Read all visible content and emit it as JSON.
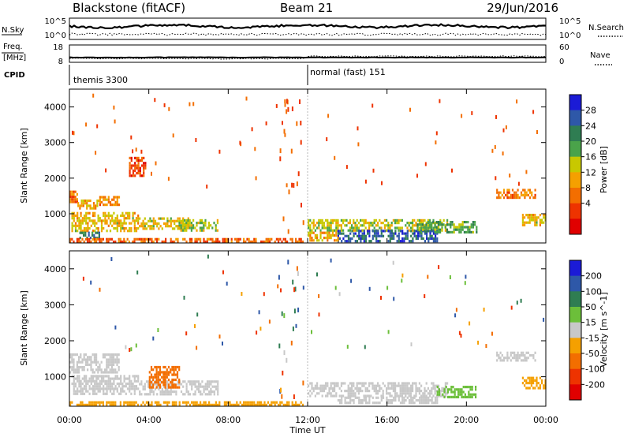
{
  "header": {
    "title": "Blackstone (fitACF)",
    "beam": "Beam 21",
    "date": "29/Jun/2016"
  },
  "noise_panel": {
    "left_label": "N.Sky",
    "right_label": "N.Search",
    "tick_top": "10^5",
    "tick_bottom": "10^0"
  },
  "freq_panel": {
    "left_label_1": "Freq.",
    "left_label_2": "[MHz]",
    "left_ticks": [
      "18",
      "8"
    ],
    "right_label": "Nave",
    "right_ticks": [
      "60",
      "0"
    ]
  },
  "cpid_panel": {
    "label": "CPID",
    "segments": [
      {
        "name": "themis 3300",
        "start_hour": 0
      },
      {
        "name": "normal (fast) 151",
        "start_hour": 12
      }
    ]
  },
  "x_axis": {
    "label": "Time UT",
    "ticks": [
      "00:00",
      "04:00",
      "08:00",
      "12:00",
      "16:00",
      "20:00",
      "00:00"
    ],
    "range_hours": [
      0,
      24
    ]
  },
  "colors": {
    "power": [
      "#1b1bd6",
      "#2e58a8",
      "#2f7d52",
      "#4aa34a",
      "#c8c800",
      "#f5a000",
      "#f36e00",
      "#ee3300",
      "#e00000"
    ],
    "velocity": [
      "#1b1bd6",
      "#2e58a8",
      "#2f7d52",
      "#6cbf3a",
      "#c8c8c8",
      "#f5a000",
      "#f36e00",
      "#ee3300",
      "#e00000"
    ]
  },
  "chart_data": [
    {
      "type": "heatmap",
      "quantity": "power",
      "ylabel": "Slant Range [km]",
      "xlabel": "Time UT",
      "ylim": [
        180,
        4500
      ],
      "yticks": [
        "4000",
        "3000",
        "2000",
        "1000"
      ],
      "colorbar": {
        "label": "Power [dB]",
        "ticks": [
          "28",
          "24",
          "20",
          "16",
          "12",
          "8",
          "4"
        ],
        "range": [
          0,
          32
        ]
      },
      "scatter_regions": [
        {
          "t0": 0.0,
          "t1": 0.4,
          "r0": 1350,
          "r1": 1650,
          "v": 10
        },
        {
          "t0": 0.4,
          "t1": 1.5,
          "r0": 1150,
          "r1": 1400,
          "v": 12
        },
        {
          "t0": 1.5,
          "t1": 2.5,
          "r0": 1250,
          "r1": 1500,
          "v": 11
        },
        {
          "t0": 0.1,
          "t1": 3.5,
          "r0": 550,
          "r1": 1050,
          "v": 14
        },
        {
          "t0": 0.5,
          "t1": 1.5,
          "r0": 300,
          "r1": 500,
          "v": 24
        },
        {
          "t0": 3.5,
          "t1": 6.0,
          "r0": 550,
          "r1": 900,
          "v": 15
        },
        {
          "t0": 5.5,
          "t1": 7.5,
          "r0": 500,
          "r1": 850,
          "v": 17
        },
        {
          "t0": 3.0,
          "t1": 3.8,
          "r0": 2100,
          "r1": 2600,
          "v": 6
        },
        {
          "t0": 0.0,
          "t1": 11.8,
          "r0": 200,
          "r1": 320,
          "v": 8
        },
        {
          "t0": 12.0,
          "t1": 19.0,
          "r0": 550,
          "r1": 850,
          "v": 16
        },
        {
          "t0": 13.5,
          "t1": 18.5,
          "r0": 250,
          "r1": 550,
          "v": 26
        },
        {
          "t0": 12.0,
          "t1": 13.5,
          "r0": 280,
          "r1": 500,
          "v": 12
        },
        {
          "t0": 17.5,
          "t1": 20.5,
          "r0": 450,
          "r1": 800,
          "v": 20
        },
        {
          "t0": 21.5,
          "t1": 23.5,
          "r0": 1450,
          "r1": 1700,
          "v": 10
        },
        {
          "t0": 22.8,
          "t1": 24.0,
          "r0": 650,
          "r1": 1000,
          "v": 14
        }
      ]
    },
    {
      "type": "heatmap",
      "quantity": "velocity",
      "ylabel": "Slant Range [km]",
      "xlabel": "Time UT",
      "ylim": [
        180,
        4500
      ],
      "yticks": [
        "4000",
        "3000",
        "2000",
        "1000"
      ],
      "colorbar": {
        "label": "Velocity [m s^-1]",
        "ticks": [
          "200",
          "100",
          "50",
          "15",
          "-15",
          "-50",
          "-100",
          "-200"
        ],
        "range": [
          -250,
          250
        ]
      },
      "scatter_regions": [
        {
          "t0": 0.0,
          "t1": 2.5,
          "r0": 1150,
          "r1": 1650,
          "v": 0
        },
        {
          "t0": 0.1,
          "t1": 3.5,
          "r0": 550,
          "r1": 1050,
          "v": 0
        },
        {
          "t0": 3.5,
          "t1": 7.5,
          "r0": 500,
          "r1": 900,
          "v": 0
        },
        {
          "t0": 4.0,
          "t1": 5.5,
          "r0": 700,
          "r1": 1300,
          "v": -70
        },
        {
          "t0": 0.0,
          "t1": 11.8,
          "r0": 200,
          "r1": 320,
          "v": -40
        },
        {
          "t0": 12.0,
          "t1": 19.0,
          "r0": 450,
          "r1": 850,
          "v": 0
        },
        {
          "t0": 13.5,
          "t1": 18.5,
          "r0": 250,
          "r1": 450,
          "v": 0
        },
        {
          "t0": 18.5,
          "t1": 20.5,
          "r0": 400,
          "r1": 750,
          "v": 30
        },
        {
          "t0": 21.5,
          "t1": 23.5,
          "r0": 1450,
          "r1": 1700,
          "v": 0
        },
        {
          "t0": 22.8,
          "t1": 24.0,
          "r0": 650,
          "r1": 1000,
          "v": -30
        }
      ]
    }
  ]
}
